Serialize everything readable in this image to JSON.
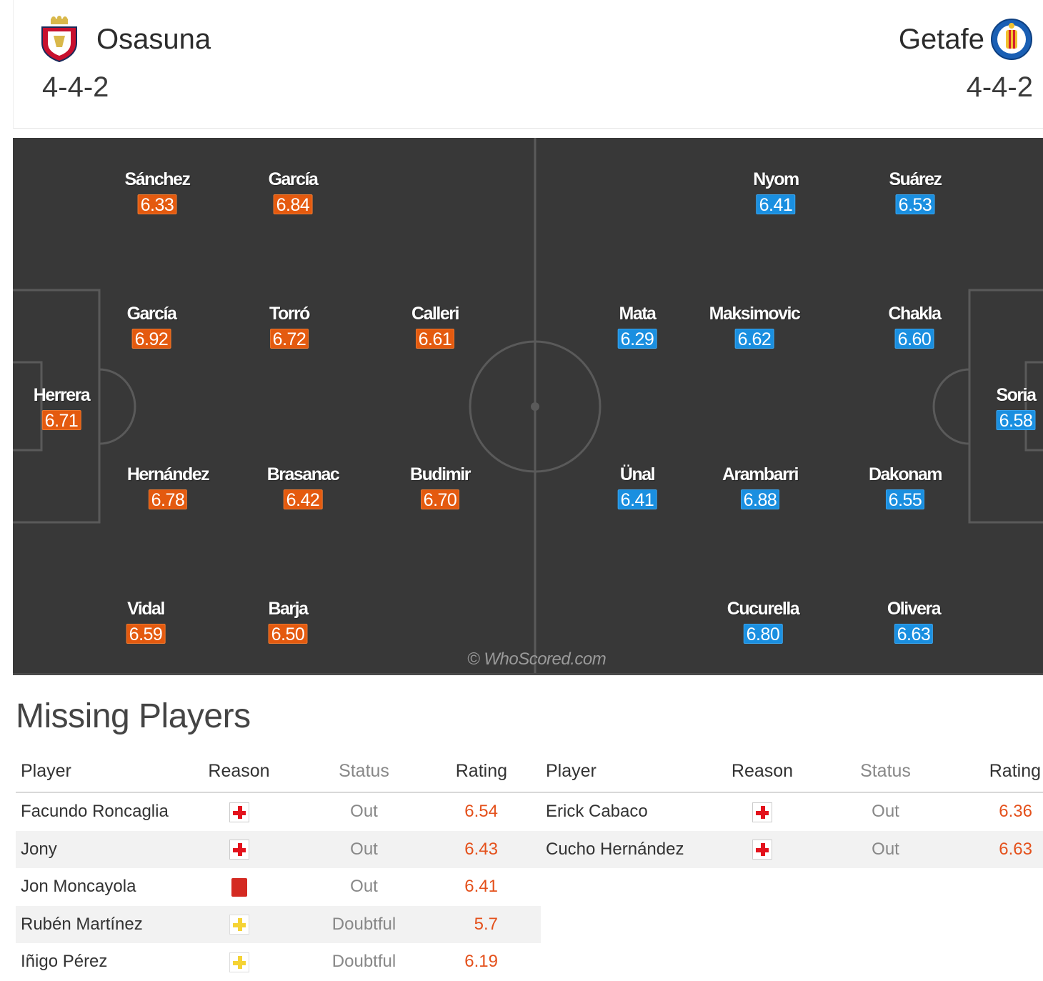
{
  "home": {
    "name": "Osasuna",
    "formation": "4-4-2",
    "crest_icon": "osasuna-crest-icon",
    "rating_color": "#e45a0f",
    "players": [
      {
        "name": "Sánchez",
        "rating": "6.33"
      },
      {
        "name": "García",
        "rating": "6.84"
      },
      {
        "name": "García",
        "rating": "6.92"
      },
      {
        "name": "Torró",
        "rating": "6.72"
      },
      {
        "name": "Calleri",
        "rating": "6.61"
      },
      {
        "name": "Herrera",
        "rating": "6.71"
      },
      {
        "name": "Hernández",
        "rating": "6.78"
      },
      {
        "name": "Brasanac",
        "rating": "6.42"
      },
      {
        "name": "Budimir",
        "rating": "6.70"
      },
      {
        "name": "Vidal",
        "rating": "6.59"
      },
      {
        "name": "Barja",
        "rating": "6.50"
      }
    ]
  },
  "away": {
    "name": "Getafe",
    "formation": "4-4-2",
    "crest_icon": "getafe-crest-icon",
    "rating_color": "#1a8fe0",
    "players": [
      {
        "name": "Nyom",
        "rating": "6.41"
      },
      {
        "name": "Suárez",
        "rating": "6.53"
      },
      {
        "name": "Mata",
        "rating": "6.29"
      },
      {
        "name": "Maksimovic",
        "rating": "6.62"
      },
      {
        "name": "Chakla",
        "rating": "6.60"
      },
      {
        "name": "Soria",
        "rating": "6.58"
      },
      {
        "name": "Ünal",
        "rating": "6.41"
      },
      {
        "name": "Arambarri",
        "rating": "6.88"
      },
      {
        "name": "Dakonam",
        "rating": "6.55"
      },
      {
        "name": "Cucurella",
        "rating": "6.80"
      },
      {
        "name": "Olivera",
        "rating": "6.63"
      }
    ]
  },
  "watermark": "© WhoScored.com",
  "missing": {
    "title": "Missing Players",
    "headers": {
      "player": "Player",
      "reason": "Reason",
      "status": "Status",
      "rating": "Rating"
    },
    "home": [
      {
        "player": "Facundo Roncaglia",
        "reason_icon": "injury-icon",
        "status": "Out",
        "rating": "6.54"
      },
      {
        "player": "Jony",
        "reason_icon": "injury-icon",
        "status": "Out",
        "rating": "6.43"
      },
      {
        "player": "Jon Moncayola",
        "reason_icon": "red-card-icon",
        "status": "Out",
        "rating": "6.41"
      },
      {
        "player": "Rubén Martínez",
        "reason_icon": "doubtful-injury-icon",
        "status": "Doubtful",
        "rating": "5.7"
      },
      {
        "player": "Iñigo Pérez",
        "reason_icon": "doubtful-injury-icon",
        "status": "Doubtful",
        "rating": "6.19"
      }
    ],
    "away": [
      {
        "player": "Erick Cabaco",
        "reason_icon": "injury-icon",
        "status": "Out",
        "rating": "6.36"
      },
      {
        "player": "Cucho Hernández",
        "reason_icon": "injury-icon",
        "status": "Out",
        "rating": "6.63"
      }
    ]
  }
}
